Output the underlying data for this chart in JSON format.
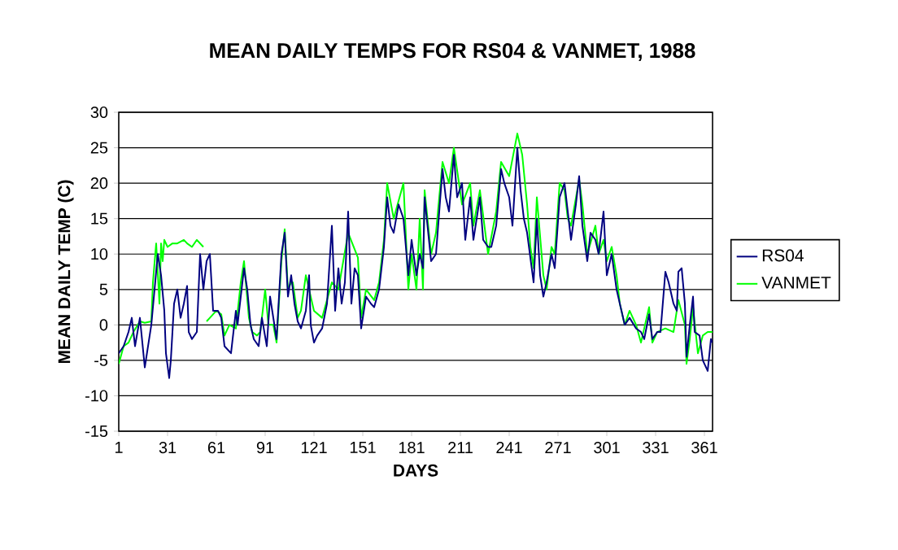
{
  "chart_data": {
    "type": "line",
    "title": "MEAN DAILY TEMPS FOR RS04 & VANMET, 1988",
    "xlabel": "DAYS",
    "ylabel": "MEAN DAILY TEMP (C)",
    "xlim": [
      1,
      366
    ],
    "xticks": [
      1,
      31,
      61,
      91,
      121,
      151,
      181,
      211,
      241,
      271,
      301,
      331,
      361
    ],
    "ylim": [
      -15,
      30
    ],
    "yticks": [
      -15,
      -10,
      -5,
      0,
      5,
      10,
      15,
      20,
      25,
      30
    ],
    "grid": "y",
    "legend": "right",
    "series": [
      {
        "name": "RS04",
        "color": "#000080",
        "x": [
          1,
          4,
          7,
          9,
          11,
          14,
          17,
          19,
          21,
          23,
          25,
          27,
          29,
          30,
          32,
          33,
          35,
          37,
          39,
          41,
          43,
          44,
          46,
          49,
          51,
          53,
          55,
          57,
          59,
          62,
          64,
          66,
          70,
          73,
          74,
          78,
          80,
          82,
          84,
          87,
          89,
          92,
          94,
          98,
          101,
          103,
          105,
          107,
          109,
          111,
          113,
          116,
          118,
          119,
          121,
          123,
          126,
          129,
          132,
          133,
          134,
          136,
          138,
          140,
          142,
          144,
          146,
          148,
          150,
          153,
          156,
          158,
          161,
          164,
          166,
          168,
          170,
          173,
          176,
          179,
          181,
          184,
          186,
          188,
          189,
          193,
          196,
          200,
          202,
          204,
          207,
          209,
          212,
          214,
          217,
          219,
          223,
          225,
          228,
          230,
          233,
          236,
          238,
          241,
          243,
          246,
          248,
          250,
          252,
          254,
          256,
          258,
          260,
          262,
          264,
          267,
          269,
          272,
          275,
          277,
          279,
          282,
          284,
          286,
          289,
          291,
          294,
          296,
          299,
          301,
          304,
          307,
          309,
          312,
          315,
          319,
          322,
          324,
          327,
          329,
          332,
          334,
          337,
          339,
          342,
          344,
          345,
          347,
          349,
          350,
          352,
          354,
          355,
          358,
          360,
          363,
          365,
          366
        ],
        "values": [
          -4,
          -3,
          -1,
          1,
          -3,
          1,
          -6,
          -3,
          0,
          5,
          10,
          7,
          2,
          -4,
          -7.5,
          -5,
          3,
          5,
          1,
          3,
          5.5,
          -1,
          -2,
          -1,
          10,
          5,
          9,
          10,
          2,
          2,
          1,
          -3,
          -4,
          2,
          0,
          8,
          5,
          0,
          -2,
          -3,
          1,
          -3,
          4,
          -2,
          10,
          13,
          4,
          7,
          3,
          0.5,
          -0.5,
          2,
          7,
          0,
          -2.5,
          -1.5,
          -0.5,
          3,
          14,
          8,
          2,
          8,
          3,
          6,
          16,
          3,
          8,
          7,
          -0.5,
          4,
          3,
          2.5,
          5,
          11,
          18,
          14,
          13,
          17,
          15,
          7,
          12,
          7,
          10,
          8,
          18,
          9,
          10,
          22,
          18,
          16,
          24,
          18,
          20,
          12,
          18,
          12,
          18,
          12,
          11,
          11,
          14,
          22,
          20,
          18,
          14,
          25,
          19,
          15,
          13,
          9.5,
          6,
          15,
          7,
          4,
          6,
          10,
          8,
          18,
          20,
          16,
          12,
          17,
          21,
          14,
          9,
          13,
          12,
          10,
          16,
          7,
          10,
          5,
          3,
          0,
          1,
          -0.5,
          -1,
          -2,
          1.5,
          -2,
          -1,
          -1,
          7.5,
          6,
          3,
          2,
          7.5,
          8,
          3,
          -4.5,
          0,
          4,
          -1,
          -1.5,
          -5,
          -6.5,
          -2,
          -2.5
        ]
      },
      {
        "name": "VANMET",
        "color": "#00ff00",
        "x": [
          1,
          4,
          7,
          10,
          14,
          17,
          21,
          22,
          24,
          26,
          27,
          28,
          29,
          31,
          34,
          37,
          41,
          43,
          46,
          49,
          53,
          54,
          55,
          57,
          61,
          64,
          66,
          69,
          73,
          76,
          78,
          81,
          83,
          86,
          88,
          91,
          93,
          96,
          98,
          101,
          103,
          105,
          107,
          108,
          111,
          113,
          116,
          121,
          126,
          132,
          136,
          142,
          148,
          150,
          153,
          158,
          161,
          164,
          166,
          170,
          176,
          179,
          181,
          184,
          186,
          188,
          189,
          193,
          196,
          200,
          204,
          207,
          212,
          217,
          219,
          223,
          228,
          233,
          236,
          241,
          246,
          249,
          252,
          254,
          256,
          258,
          262,
          264,
          267,
          269,
          272,
          275,
          277,
          279,
          284,
          286,
          289,
          294,
          296,
          299,
          301,
          304,
          307,
          309,
          312,
          315,
          319,
          322,
          327,
          329,
          332,
          337,
          342,
          345,
          349,
          350,
          352,
          354,
          357,
          360,
          363,
          366
        ],
        "values": [
          -5.5,
          -3,
          -2.5,
          -1,
          0.5,
          0.3,
          0.5,
          6,
          11.5,
          3,
          11.5,
          9,
          12,
          11,
          11.5,
          11.5,
          12,
          11.5,
          11,
          12,
          11,
          null,
          0.5,
          1,
          2,
          1.5,
          -1.5,
          0,
          -0.5,
          6,
          9,
          1,
          -1,
          -1.5,
          -1,
          5,
          0,
          0,
          -2.5,
          9,
          13.5,
          5,
          6,
          6,
          1,
          2,
          7,
          2,
          1,
          6,
          5,
          13,
          9.5,
          1,
          5,
          3.5,
          6,
          12,
          20,
          15,
          20,
          5,
          10,
          5,
          15,
          5,
          19,
          10,
          13,
          23,
          20,
          25,
          17,
          20,
          14,
          19,
          10,
          16,
          23,
          21,
          27,
          24,
          17,
          11,
          8,
          18,
          7,
          5,
          11,
          10,
          20,
          19,
          15,
          14,
          20.5,
          17,
          10,
          14,
          10,
          12,
          9,
          11,
          7,
          3,
          0,
          2,
          0,
          -2.5,
          2.5,
          -2.5,
          -1,
          -0.5,
          -1,
          3.5,
          0,
          -5.5,
          -2,
          2.5,
          -4,
          -1.5,
          -1,
          -1
        ]
      }
    ]
  }
}
